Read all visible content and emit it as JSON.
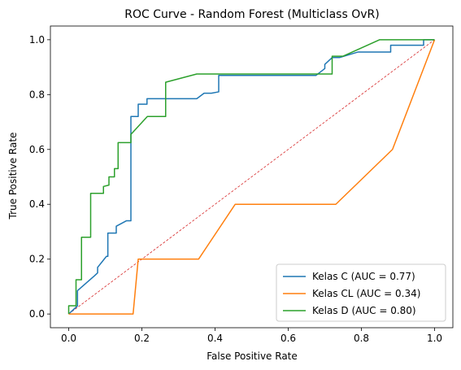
{
  "chart_data": {
    "type": "line",
    "title": "ROC Curve - Random Forest (Multiclass OvR)",
    "xlabel": "False Positive Rate",
    "ylabel": "True Positive Rate",
    "xlim": [
      -0.05,
      1.05
    ],
    "ylim": [
      -0.05,
      1.05
    ],
    "xticks": [
      "0.0",
      "0.2",
      "0.4",
      "0.6",
      "0.8",
      "1.0"
    ],
    "yticks": [
      "0.0",
      "0.2",
      "0.4",
      "0.6",
      "0.8",
      "1.0"
    ],
    "grid": false,
    "legend_position": "lower-right",
    "series": [
      {
        "name": "Kelas C (AUC = 0.77)",
        "color": "#1f77b4",
        "x": [
          0.0,
          0.024,
          0.024,
          0.071,
          0.079,
          0.079,
          0.103,
          0.107,
          0.107,
          0.13,
          0.13,
          0.158,
          0.158,
          0.17,
          0.17,
          0.19,
          0.19,
          0.214,
          0.214,
          0.35,
          0.37,
          0.39,
          0.41,
          0.41,
          0.676,
          0.7,
          0.7,
          0.72,
          0.74,
          0.79,
          0.82,
          0.88,
          0.88,
          0.97,
          0.97,
          1.0
        ],
        "y": [
          0.0,
          0.03,
          0.085,
          0.14,
          0.15,
          0.17,
          0.21,
          0.21,
          0.295,
          0.295,
          0.32,
          0.34,
          0.34,
          0.34,
          0.72,
          0.72,
          0.765,
          0.765,
          0.785,
          0.785,
          0.805,
          0.805,
          0.81,
          0.87,
          0.87,
          0.895,
          0.91,
          0.935,
          0.935,
          0.955,
          0.955,
          0.955,
          0.98,
          0.98,
          1.0,
          1.0
        ]
      },
      {
        "name": "Kelas CL (AUC = 0.34)",
        "color": "#ff7f0e",
        "x": [
          0.0,
          0.176,
          0.19,
          0.355,
          0.455,
          0.73,
          0.885,
          1.0
        ],
        "y": [
          0.0,
          0.0,
          0.2,
          0.2,
          0.4,
          0.4,
          0.6,
          1.0
        ]
      },
      {
        "name": "Kelas D (AUC = 0.80)",
        "color": "#2ca02c",
        "x": [
          0.0,
          0.0,
          0.02,
          0.02,
          0.035,
          0.035,
          0.05,
          0.05,
          0.06,
          0.06,
          0.095,
          0.095,
          0.11,
          0.11,
          0.125,
          0.125,
          0.135,
          0.135,
          0.17,
          0.17,
          0.215,
          0.265,
          0.265,
          0.35,
          0.68,
          0.7,
          0.72,
          0.72,
          0.75,
          0.85,
          0.97,
          0.97,
          1.0
        ],
        "y": [
          0.0,
          0.03,
          0.03,
          0.125,
          0.125,
          0.28,
          0.28,
          0.28,
          0.28,
          0.44,
          0.44,
          0.465,
          0.47,
          0.5,
          0.5,
          0.53,
          0.53,
          0.625,
          0.625,
          0.655,
          0.72,
          0.72,
          0.845,
          0.875,
          0.875,
          0.875,
          0.875,
          0.94,
          0.94,
          1.0,
          1.0,
          1.0,
          1.0
        ]
      }
    ],
    "reference_line": {
      "x": [
        0.0,
        1.0
      ],
      "y": [
        0.0,
        1.0
      ],
      "color": "#d62728",
      "style": "dashed"
    }
  }
}
